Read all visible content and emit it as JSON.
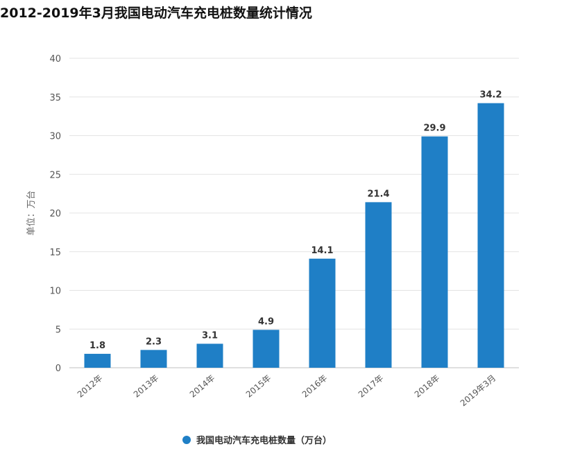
{
  "chart_data": {
    "type": "bar",
    "title": "2012-2019年3月我国电动汽车充电桩数量统计情况",
    "ylabel": "单位：万台",
    "xlabel": "",
    "categories": [
      "2012年",
      "2013年",
      "2014年",
      "2015年",
      "2016年",
      "2017年",
      "2018年",
      "2019年3月"
    ],
    "series": [
      {
        "name": "我国电动汽车充电桩数量（万台）",
        "values": [
          1.8,
          2.3,
          3.1,
          4.9,
          14.1,
          21.4,
          29.9,
          34.2
        ],
        "data_labels": [
          "1.8",
          "2.3",
          "3.1",
          "4.9",
          "14.1",
          "21.4",
          "29.9",
          "34.2"
        ]
      }
    ],
    "ylim": [
      0,
      40
    ],
    "yticks": [
      0,
      5,
      10,
      15,
      20,
      25,
      30,
      35,
      40
    ],
    "grid": true,
    "legend_position": "bottom",
    "colors": {
      "bar": "#1f7fc6",
      "grid": "#e3e3e3",
      "axis": "#bfbfbf"
    }
  }
}
